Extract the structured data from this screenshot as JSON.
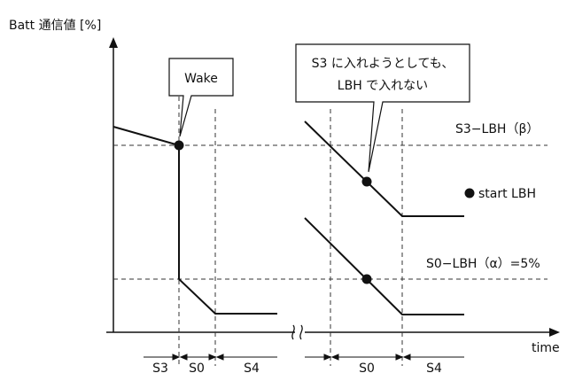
{
  "axis": {
    "y_label": "Batt 通信値 [%]",
    "x_label": "time"
  },
  "callouts": {
    "wake": "Wake",
    "s3_fail_line1": "S3 に入れようとしても、",
    "s3_fail_line2": "LBH で入れない"
  },
  "threshold_labels": {
    "s3_lbh": "S3−LBH（β）",
    "s0_lbh": "S0−LBH（α）=5%"
  },
  "legend": {
    "start_lbh": "start LBH"
  },
  "states_left": [
    "S3",
    "S0",
    "S4"
  ],
  "states_right": [
    "S0",
    "S4"
  ],
  "axis_break": "≈",
  "colors": {
    "line": "#111111",
    "dashed": "#333333"
  }
}
